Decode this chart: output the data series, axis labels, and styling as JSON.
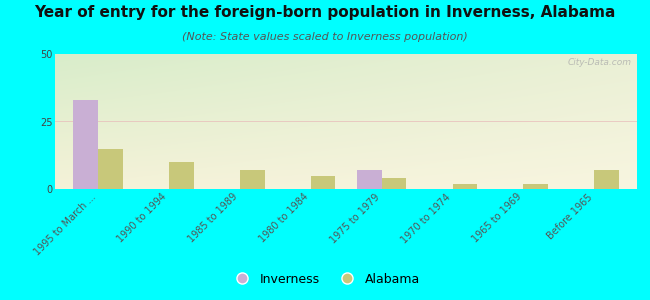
{
  "title": "Year of entry for the foreign-born population in Inverness, Alabama",
  "subtitle": "(Note: State values scaled to Inverness population)",
  "categories": [
    "1995 to March ...",
    "1990 to 1994",
    "1985 to 1989",
    "1980 to 1984",
    "1975 to 1979",
    "1970 to 1974",
    "1965 to 1969",
    "Before 1965"
  ],
  "inverness_values": [
    33,
    0,
    0,
    0,
    7,
    0,
    0,
    0
  ],
  "alabama_values": [
    15,
    10,
    7,
    5,
    4,
    2,
    2,
    7
  ],
  "inverness_color": "#c9afd4",
  "alabama_color": "#c8c87a",
  "ylim": [
    0,
    50
  ],
  "yticks": [
    0,
    25,
    50
  ],
  "bg_color_topleft": "#d8edca",
  "bg_color_topright": "#e8f0d0",
  "bg_color_bottomleft": "#f0f0d8",
  "bg_color_bottomright": "#f5f5e0",
  "outer_background": "#00ffff",
  "bar_width": 0.35,
  "title_fontsize": 11,
  "subtitle_fontsize": 8,
  "tick_fontsize": 7,
  "legend_fontsize": 9,
  "watermark": "City-Data.com"
}
